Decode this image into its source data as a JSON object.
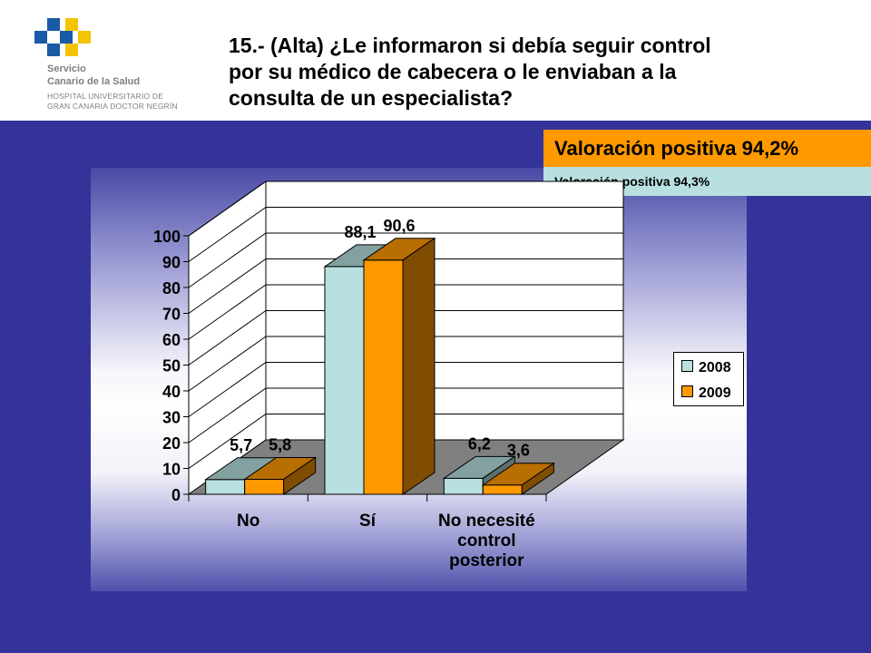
{
  "header": {
    "logo_lines": [
      "Servicio",
      "Canario de la Salud",
      "HOSPITAL UNIVERSITARIO DE",
      "GRAN CANARIA DOCTOR NEGRÍN"
    ],
    "title_lines": [
      "15.- (Alta) ¿Le informaron si debía seguir control",
      "por su médico de cabecera o le enviaban a la",
      "consulta de un especialista?"
    ]
  },
  "badges": {
    "main": "Valoración positiva 94,2%",
    "sub": "Valoración positiva 94,3%"
  },
  "colors": {
    "background": "#333399",
    "series_2008": "#b8e0e0",
    "series_2009": "#ff9900",
    "floor": "#808080"
  },
  "chart_data": {
    "type": "bar",
    "style": "3d-clustered",
    "categories": [
      "No",
      "Sí",
      "No necesité control posterior"
    ],
    "category_label_lines": [
      [
        "No"
      ],
      [
        "Sí"
      ],
      [
        "No necesité",
        "control",
        "posterior"
      ]
    ],
    "series": [
      {
        "name": "2008",
        "values": [
          5.7,
          88.1,
          6.2
        ],
        "labels": [
          "5,7",
          "88,1",
          "6,2"
        ]
      },
      {
        "name": "2009",
        "values": [
          5.8,
          90.6,
          3.6
        ],
        "labels": [
          "5,8",
          "90,6",
          "3,6"
        ]
      }
    ],
    "y_ticks": [
      0,
      10,
      20,
      30,
      40,
      50,
      60,
      70,
      80,
      90,
      100
    ],
    "ylim": [
      0,
      100
    ],
    "grid": true,
    "legend_position": "right"
  }
}
